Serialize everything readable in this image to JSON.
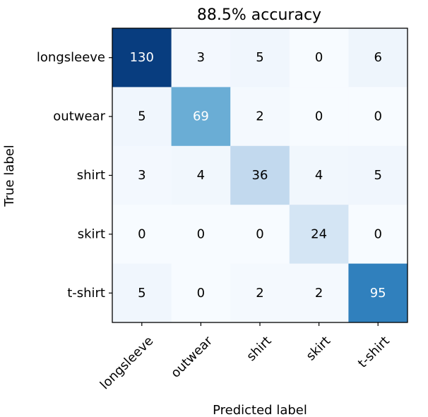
{
  "chart_data": {
    "type": "heatmap",
    "title": "88.5% accuracy",
    "xlabel": "Predicted label",
    "ylabel": "True label",
    "x_categories": [
      "longsleeve",
      "outwear",
      "shirt",
      "skirt",
      "t-shirt"
    ],
    "y_categories": [
      "longsleeve",
      "outwear",
      "shirt",
      "skirt",
      "t-shirt"
    ],
    "values": [
      [
        130,
        3,
        5,
        0,
        6
      ],
      [
        5,
        69,
        2,
        0,
        0
      ],
      [
        3,
        4,
        36,
        4,
        5
      ],
      [
        0,
        0,
        0,
        24,
        0
      ],
      [
        5,
        0,
        2,
        2,
        95
      ]
    ],
    "colormap": "Blues",
    "color_low": "#f7fbff",
    "color_high": "#08306b",
    "grid": false,
    "legend": "none"
  }
}
